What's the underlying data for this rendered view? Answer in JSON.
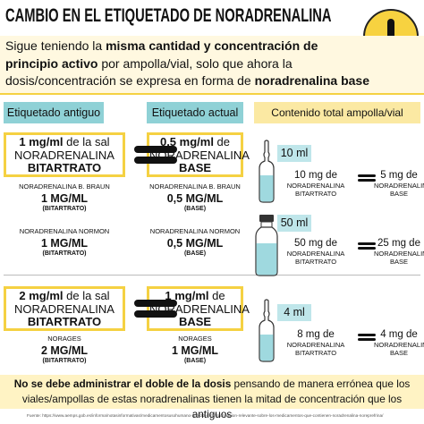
{
  "header": {
    "title": "CAMBIO EN EL ETIQUETADO DE NORADRENALINA",
    "intro": [
      "Sigue teniendo la ",
      "misma cantidad y concentración de principio activo",
      " por ampolla/vial, solo que ahora la dosis/concentración se expresa en forma de ",
      "noradrenalina base"
    ]
  },
  "columns": [
    "Etiquetado antiguo",
    "Etiquetado actual",
    "Contenido total ampolla/vial"
  ],
  "groups": [
    {
      "old": {
        "concentration": "1 mg/ml",
        "qualifier": " de la sal",
        "name": "NORADRENALINA",
        "form": "BITARTRATO"
      },
      "new": {
        "concentration": "0,5 mg/ml",
        "qualifier": " de",
        "name": "NORADRENALINA",
        "form": "BASE"
      },
      "products": [
        {
          "old": [
            "NORADRENALINA B. BRAUN",
            "1 MG/ML",
            "(BITARTRATO)"
          ],
          "new": [
            "NORADRENALINA B. BRAUN",
            "0,5 MG/ML",
            "(BASE)"
          ]
        },
        {
          "old": [
            "NORADRENALINA NORMON",
            "1 MG/ML",
            "(BITARTRATO)"
          ],
          "new": [
            "NORADRENALINA NORMON",
            "0,5 MG/ML",
            "(BASE)"
          ]
        }
      ],
      "containers": [
        {
          "volume": "10 ml",
          "old": [
            "10 mg de",
            "NORADRENALINA",
            "BITARTRATO"
          ],
          "new": [
            "5 mg de",
            "NORADRENALINA",
            "BASE"
          ]
        },
        {
          "volume": "50 ml",
          "old": [
            "50 mg de",
            "NORADRENALINA",
            "BITARTRATO"
          ],
          "new": [
            "25 mg de",
            "NORADRENALINA",
            "BASE"
          ]
        }
      ]
    },
    {
      "old": {
        "concentration": "2 mg/ml",
        "qualifier": " de la sal",
        "name": "NORADRENALINA",
        "form": "BITARTRATO"
      },
      "new": {
        "concentration": "1 mg/ml",
        "qualifier": " de",
        "name": "NORADRENALINA",
        "form": "BASE"
      },
      "products": [
        {
          "old": [
            "NORAGES",
            "2 MG/ML",
            "(BITARTRATO)"
          ],
          "new": [
            "NORAGES",
            "1 MG/ML",
            "(BASE)"
          ]
        }
      ],
      "containers": [
        {
          "volume": "4 ml",
          "old": [
            "8 mg de",
            "NORADRENALINA",
            "BITARTRATO"
          ],
          "new": [
            "4 mg de",
            "NORADRENALINA",
            "BASE"
          ]
        }
      ]
    }
  ],
  "warning": [
    "No se debe administrar el doble de la dosis",
    " pensando de manera errónea que los viales/ampollas de estas noradrenalinas tienen la mitad de concentración que los antiguos"
  ],
  "source": "Fuente: https://www.aemps.gob.es/informa/notasinformativas/medicamentosusohumano-3/2022-mzh/informacion-relevante-sobre-los-medicamentos-que-contienen-noradrenalina-noreprefrina/"
}
